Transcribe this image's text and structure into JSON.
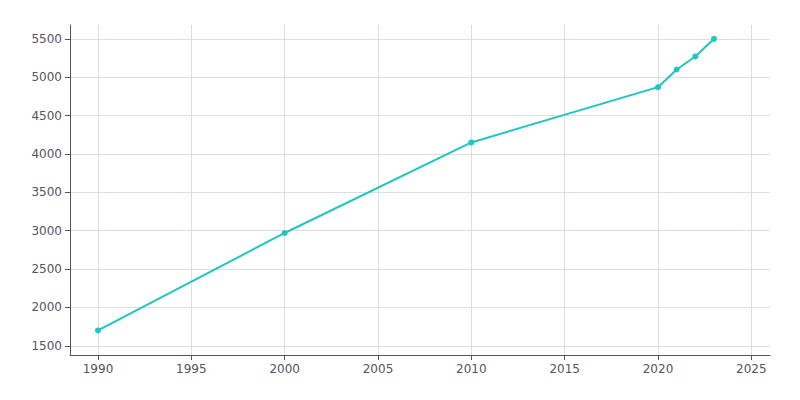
{
  "chart_data": {
    "type": "line",
    "x": [
      1990,
      2000,
      2010,
      2020,
      2021,
      2022,
      2023
    ],
    "values": [
      1700,
      2970,
      4150,
      4870,
      5100,
      5270,
      5500
    ],
    "color": "#20c5c0",
    "marker": "circle",
    "xlim": [
      1988.5,
      2026
    ],
    "ylim": [
      1380,
      5680
    ],
    "xticks": [
      1990,
      1995,
      2000,
      2005,
      2010,
      2015,
      2020,
      2025
    ],
    "yticks": [
      1500,
      2000,
      2500,
      3000,
      3500,
      4000,
      4500,
      5000,
      5500
    ],
    "grid": true
  }
}
